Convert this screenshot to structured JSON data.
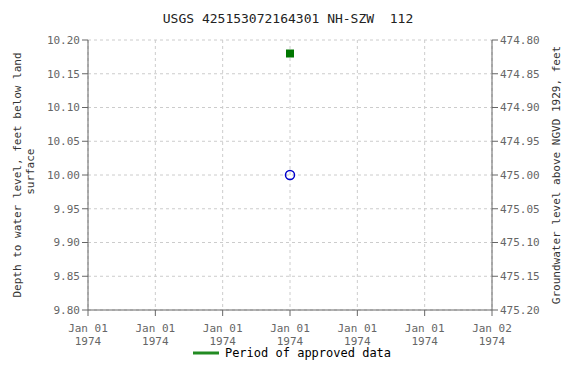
{
  "chart_data": {
    "type": "scatter",
    "title": "USGS 425153072164301 NH-SZW  112",
    "y_label": "Depth to water level, feet below land\n surface",
    "y2_label": "Groundwater level above NGVD 1929, feet",
    "categories": [
      "Jan 01\n1974",
      "Jan 01\n1974",
      "Jan 01\n1974",
      "Jan 01\n1974",
      "Jan 01\n1974",
      "Jan 01\n1974",
      "Jan 02\n1974"
    ],
    "series": [
      {
        "type": "scatter",
        "marker": "open_circle",
        "color": "#0000cc",
        "values": [
          null,
          null,
          null,
          10,
          null,
          null,
          null
        ]
      },
      {
        "type": "scatter",
        "marker": "square",
        "color": "#007700",
        "values": [
          null,
          null,
          null,
          10.18,
          null,
          null,
          null
        ]
      },
      {
        "type": "line",
        "name": "Period of approved data",
        "color": "#228B22",
        "values": [
          null,
          null,
          null,
          null,
          null,
          null,
          null
        ]
      }
    ],
    "ylim": [
      9.8,
      10.2
    ],
    "yticks": [
      {
        "value": 9.8,
        "label": "9.80"
      },
      9.85,
      {
        "value": 9.9,
        "label": "9.90"
      },
      9.95,
      {
        "value": 10,
        "label": "10.00"
      },
      10.05,
      {
        "value": 10.1,
        "label": "10.10"
      },
      10.15,
      {
        "value": 10.2,
        "label": "10.20"
      }
    ],
    "y2lim": [
      475.2,
      474.8
    ],
    "y2ticks": [
      {
        "value": 475.2,
        "label": "475.20"
      },
      475.15,
      {
        "value": 475.1,
        "label": "475.10"
      },
      475.05,
      {
        "value": 475,
        "label": "475.00"
      },
      474.95,
      {
        "value": 474.9,
        "label": "474.90"
      },
      474.85,
      {
        "value": 474.8,
        "label": "474.80"
      }
    ],
    "grid": true,
    "legend": "bottom"
  }
}
